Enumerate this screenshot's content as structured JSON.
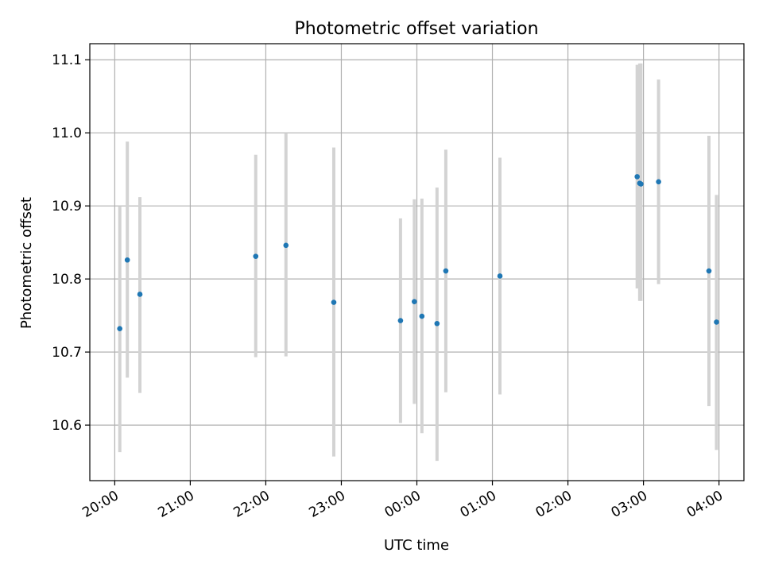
{
  "chart_data": {
    "type": "scatter",
    "title": "Photometric offset variation",
    "xlabel": "UTC time",
    "ylabel": "Photometric offset",
    "x_tick_labels": [
      "20:00",
      "21:00",
      "22:00",
      "23:00",
      "00:00",
      "01:00",
      "02:00",
      "03:00",
      "04:00"
    ],
    "x_tick_hours": [
      0,
      1,
      2,
      3,
      4,
      5,
      6,
      7,
      8
    ],
    "y_ticks": [
      10.6,
      10.7,
      10.8,
      10.9,
      11.0,
      11.1
    ],
    "y_tick_labels": [
      "10.6",
      "10.7",
      "10.8",
      "10.9",
      "11.0",
      "11.1"
    ],
    "xlim_hours": [
      -0.33,
      8.33
    ],
    "ylim": [
      10.524,
      11.122
    ],
    "grid": true,
    "colors": {
      "point": "#1f77b4",
      "errorbar": "#d3d3d3",
      "grid": "#b0b0b0"
    },
    "points": [
      {
        "t": "20:04",
        "y": 10.732,
        "ylo": 10.563,
        "yhi": 10.899
      },
      {
        "t": "20:10",
        "y": 10.826,
        "ylo": 10.665,
        "yhi": 10.988
      },
      {
        "t": "20:20",
        "y": 10.779,
        "ylo": 10.644,
        "yhi": 10.912
      },
      {
        "t": "21:52",
        "y": 10.831,
        "ylo": 10.693,
        "yhi": 10.97
      },
      {
        "t": "22:16",
        "y": 10.846,
        "ylo": 10.694,
        "yhi": 10.999
      },
      {
        "t": "22:54",
        "y": 10.768,
        "ylo": 10.557,
        "yhi": 10.98
      },
      {
        "t": "23:47",
        "y": 10.743,
        "ylo": 10.603,
        "yhi": 10.883
      },
      {
        "t": "23:58",
        "y": 10.769,
        "ylo": 10.629,
        "yhi": 10.909
      },
      {
        "t": "00:04",
        "y": 10.749,
        "ylo": 10.589,
        "yhi": 10.91
      },
      {
        "t": "00:16",
        "y": 10.739,
        "ylo": 10.551,
        "yhi": 10.925
      },
      {
        "t": "00:23",
        "y": 10.811,
        "ylo": 10.645,
        "yhi": 10.977
      },
      {
        "t": "01:06",
        "y": 10.804,
        "ylo": 10.642,
        "yhi": 10.966
      },
      {
        "t": "02:55",
        "y": 10.94,
        "ylo": 10.787,
        "yhi": 11.093
      },
      {
        "t": "02:57",
        "y": 10.931,
        "ylo": 10.77,
        "yhi": 11.095
      },
      {
        "t": "02:58",
        "y": 10.93,
        "ylo": 10.77,
        "yhi": 11.095
      },
      {
        "t": "03:12",
        "y": 10.933,
        "ylo": 10.793,
        "yhi": 11.073
      },
      {
        "t": "03:52",
        "y": 10.811,
        "ylo": 10.626,
        "yhi": 10.996
      },
      {
        "t": "03:58",
        "y": 10.741,
        "ylo": 10.566,
        "yhi": 10.915
      }
    ]
  }
}
